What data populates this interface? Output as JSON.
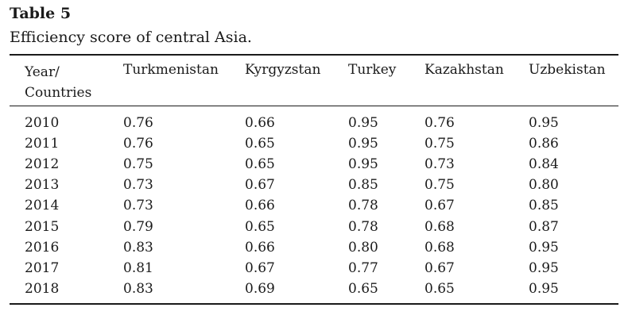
{
  "table": {
    "label": "Table 5",
    "caption": "Efficiency score of central Asia.",
    "header": {
      "first_line1": "Year/",
      "first_line2": "Countries",
      "countries": [
        "Turkmenistan",
        "Kyrgyzstan",
        "Turkey",
        "Kazakhstan",
        "Uzbekistan"
      ]
    },
    "rows": [
      {
        "year": "2010",
        "values": [
          "0.76",
          "0.66",
          "0.95",
          "0.76",
          "0.95"
        ]
      },
      {
        "year": "2011",
        "values": [
          "0.76",
          "0.65",
          "0.95",
          "0.75",
          "0.86"
        ]
      },
      {
        "year": "2012",
        "values": [
          "0.75",
          "0.65",
          "0.95",
          "0.73",
          "0.84"
        ]
      },
      {
        "year": "2013",
        "values": [
          "0.73",
          "0.67",
          "0.85",
          "0.75",
          "0.80"
        ]
      },
      {
        "year": "2014",
        "values": [
          "0.73",
          "0.66",
          "0.78",
          "0.67",
          "0.85"
        ]
      },
      {
        "year": "2015",
        "values": [
          "0.79",
          "0.65",
          "0.78",
          "0.68",
          "0.87"
        ]
      },
      {
        "year": "2016",
        "values": [
          "0.83",
          "0.66",
          "0.80",
          "0.68",
          "0.95"
        ]
      },
      {
        "year": "2017",
        "values": [
          "0.81",
          "0.67",
          "0.77",
          "0.67",
          "0.95"
        ]
      },
      {
        "year": "2018",
        "values": [
          "0.83",
          "0.69",
          "0.65",
          "0.65",
          "0.95"
        ]
      }
    ]
  }
}
